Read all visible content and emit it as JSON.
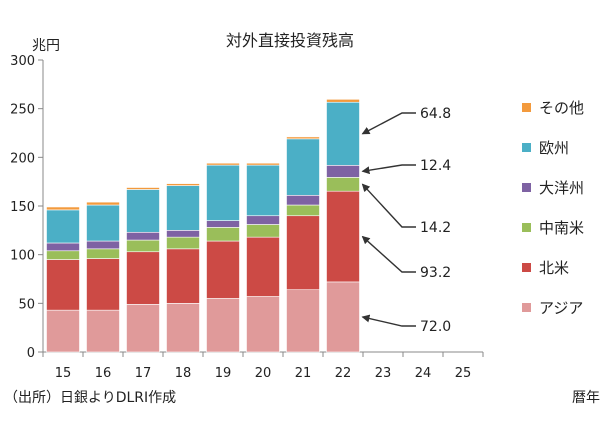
{
  "chart_data": {
    "type": "bar",
    "stacked": true,
    "title": "対外直接投資残高",
    "ylabel": "兆円",
    "xlabel": "暦年",
    "source": "（出所）日銀よりDLRI作成",
    "ylim": [
      0,
      300
    ],
    "yticks": [
      0,
      50,
      100,
      150,
      200,
      250,
      300
    ],
    "grid": false,
    "legend_position": "right",
    "categories": [
      "15",
      "16",
      "17",
      "18",
      "19",
      "20",
      "21",
      "22",
      "23",
      "24",
      "25"
    ],
    "series": [
      {
        "name": "アジア",
        "color": "#e09a9a",
        "values": [
          43,
          43,
          49,
          50,
          55,
          57,
          64,
          72.0,
          null,
          null,
          null
        ]
      },
      {
        "name": "北米",
        "color": "#cc4a45",
        "values": [
          52,
          53,
          54,
          56,
          59,
          61,
          76,
          93.2,
          null,
          null,
          null
        ]
      },
      {
        "name": "中南米",
        "color": "#9abe5a",
        "values": [
          9,
          10,
          12,
          12,
          14,
          13,
          11,
          14.2,
          null,
          null,
          null
        ]
      },
      {
        "name": "大洋州",
        "color": "#7e62a3",
        "values": [
          8,
          8,
          8,
          7,
          7,
          9,
          10,
          12.4,
          null,
          null,
          null
        ]
      },
      {
        "name": "欧州",
        "color": "#4bafc6",
        "values": [
          34,
          37,
          44,
          46,
          57,
          52,
          58,
          64.8,
          null,
          null,
          null
        ]
      },
      {
        "name": "その他",
        "color": "#f39a3d",
        "values": [
          3,
          3,
          2,
          2,
          2,
          2,
          2,
          3,
          null,
          null,
          null
        ]
      }
    ],
    "annotations": [
      {
        "series": "欧州",
        "category": "22",
        "label": "64.8"
      },
      {
        "series": "大洋州",
        "category": "22",
        "label": "12.4"
      },
      {
        "series": "中南米",
        "category": "22",
        "label": "14.2"
      },
      {
        "series": "北米",
        "category": "22",
        "label": "93.2"
      },
      {
        "series": "アジア",
        "category": "22",
        "label": "72.0"
      }
    ]
  }
}
